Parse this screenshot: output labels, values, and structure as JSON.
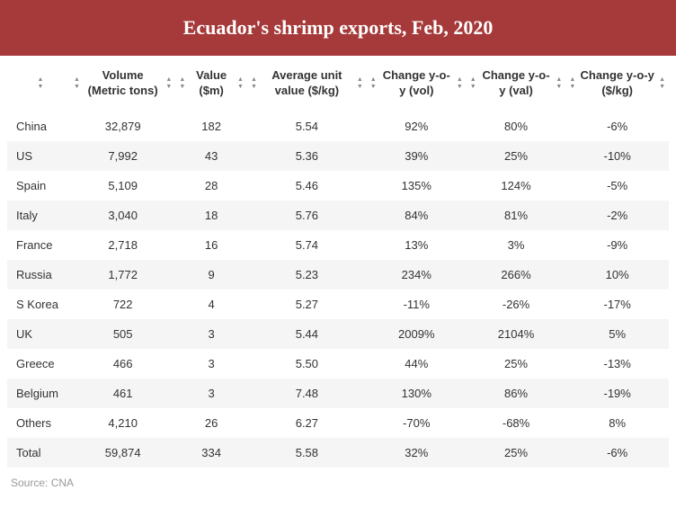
{
  "title": "Ecuador's shrimp exports, Feb, 2020",
  "columns": [
    {
      "label": ""
    },
    {
      "label": "Volume (Metric tons)"
    },
    {
      "label": "Value ($m)"
    },
    {
      "label": "Average unit value ($/kg)"
    },
    {
      "label": "Change y-o-y (vol)"
    },
    {
      "label": "Change y-o-y (val)"
    },
    {
      "label": "Change y-o-y ($/kg)"
    }
  ],
  "rows": [
    {
      "country": "China",
      "volume": "32,879",
      "value": "182",
      "avg": "5.54",
      "d_vol": "92%",
      "d_val": "80%",
      "d_kg": "-6%"
    },
    {
      "country": "US",
      "volume": "7,992",
      "value": "43",
      "avg": "5.36",
      "d_vol": "39%",
      "d_val": "25%",
      "d_kg": "-10%"
    },
    {
      "country": "Spain",
      "volume": "5,109",
      "value": "28",
      "avg": "5.46",
      "d_vol": "135%",
      "d_val": "124%",
      "d_kg": "-5%"
    },
    {
      "country": "Italy",
      "volume": "3,040",
      "value": "18",
      "avg": "5.76",
      "d_vol": "84%",
      "d_val": "81%",
      "d_kg": "-2%"
    },
    {
      "country": "France",
      "volume": "2,718",
      "value": "16",
      "avg": "5.74",
      "d_vol": "13%",
      "d_val": "3%",
      "d_kg": "-9%"
    },
    {
      "country": "Russia",
      "volume": "1,772",
      "value": "9",
      "avg": "5.23",
      "d_vol": "234%",
      "d_val": "266%",
      "d_kg": "10%"
    },
    {
      "country": "S Korea",
      "volume": "722",
      "value": "4",
      "avg": "5.27",
      "d_vol": "-11%",
      "d_val": "-26%",
      "d_kg": "-17%"
    },
    {
      "country": "UK",
      "volume": "505",
      "value": "3",
      "avg": "5.44",
      "d_vol": "2009%",
      "d_val": "2104%",
      "d_kg": "5%"
    },
    {
      "country": "Greece",
      "volume": "466",
      "value": "3",
      "avg": "5.50",
      "d_vol": "44%",
      "d_val": "25%",
      "d_kg": "-13%"
    },
    {
      "country": "Belgium",
      "volume": "461",
      "value": "3",
      "avg": "7.48",
      "d_vol": "130%",
      "d_val": "86%",
      "d_kg": "-19%"
    },
    {
      "country": "Others",
      "volume": "4,210",
      "value": "26",
      "avg": "6.27",
      "d_vol": "-70%",
      "d_val": "-68%",
      "d_kg": "8%"
    },
    {
      "country": "Total",
      "volume": "59,874",
      "value": "334",
      "avg": "5.58",
      "d_vol": "32%",
      "d_val": "25%",
      "d_kg": "-6%"
    }
  ],
  "source": "Source: CNA",
  "colors": {
    "header_bg": "#a63939",
    "header_text": "#ffffff",
    "row_alt_bg": "#f5f5f5",
    "text": "#333333",
    "source_text": "#999999",
    "sort_icon": "#888888"
  }
}
